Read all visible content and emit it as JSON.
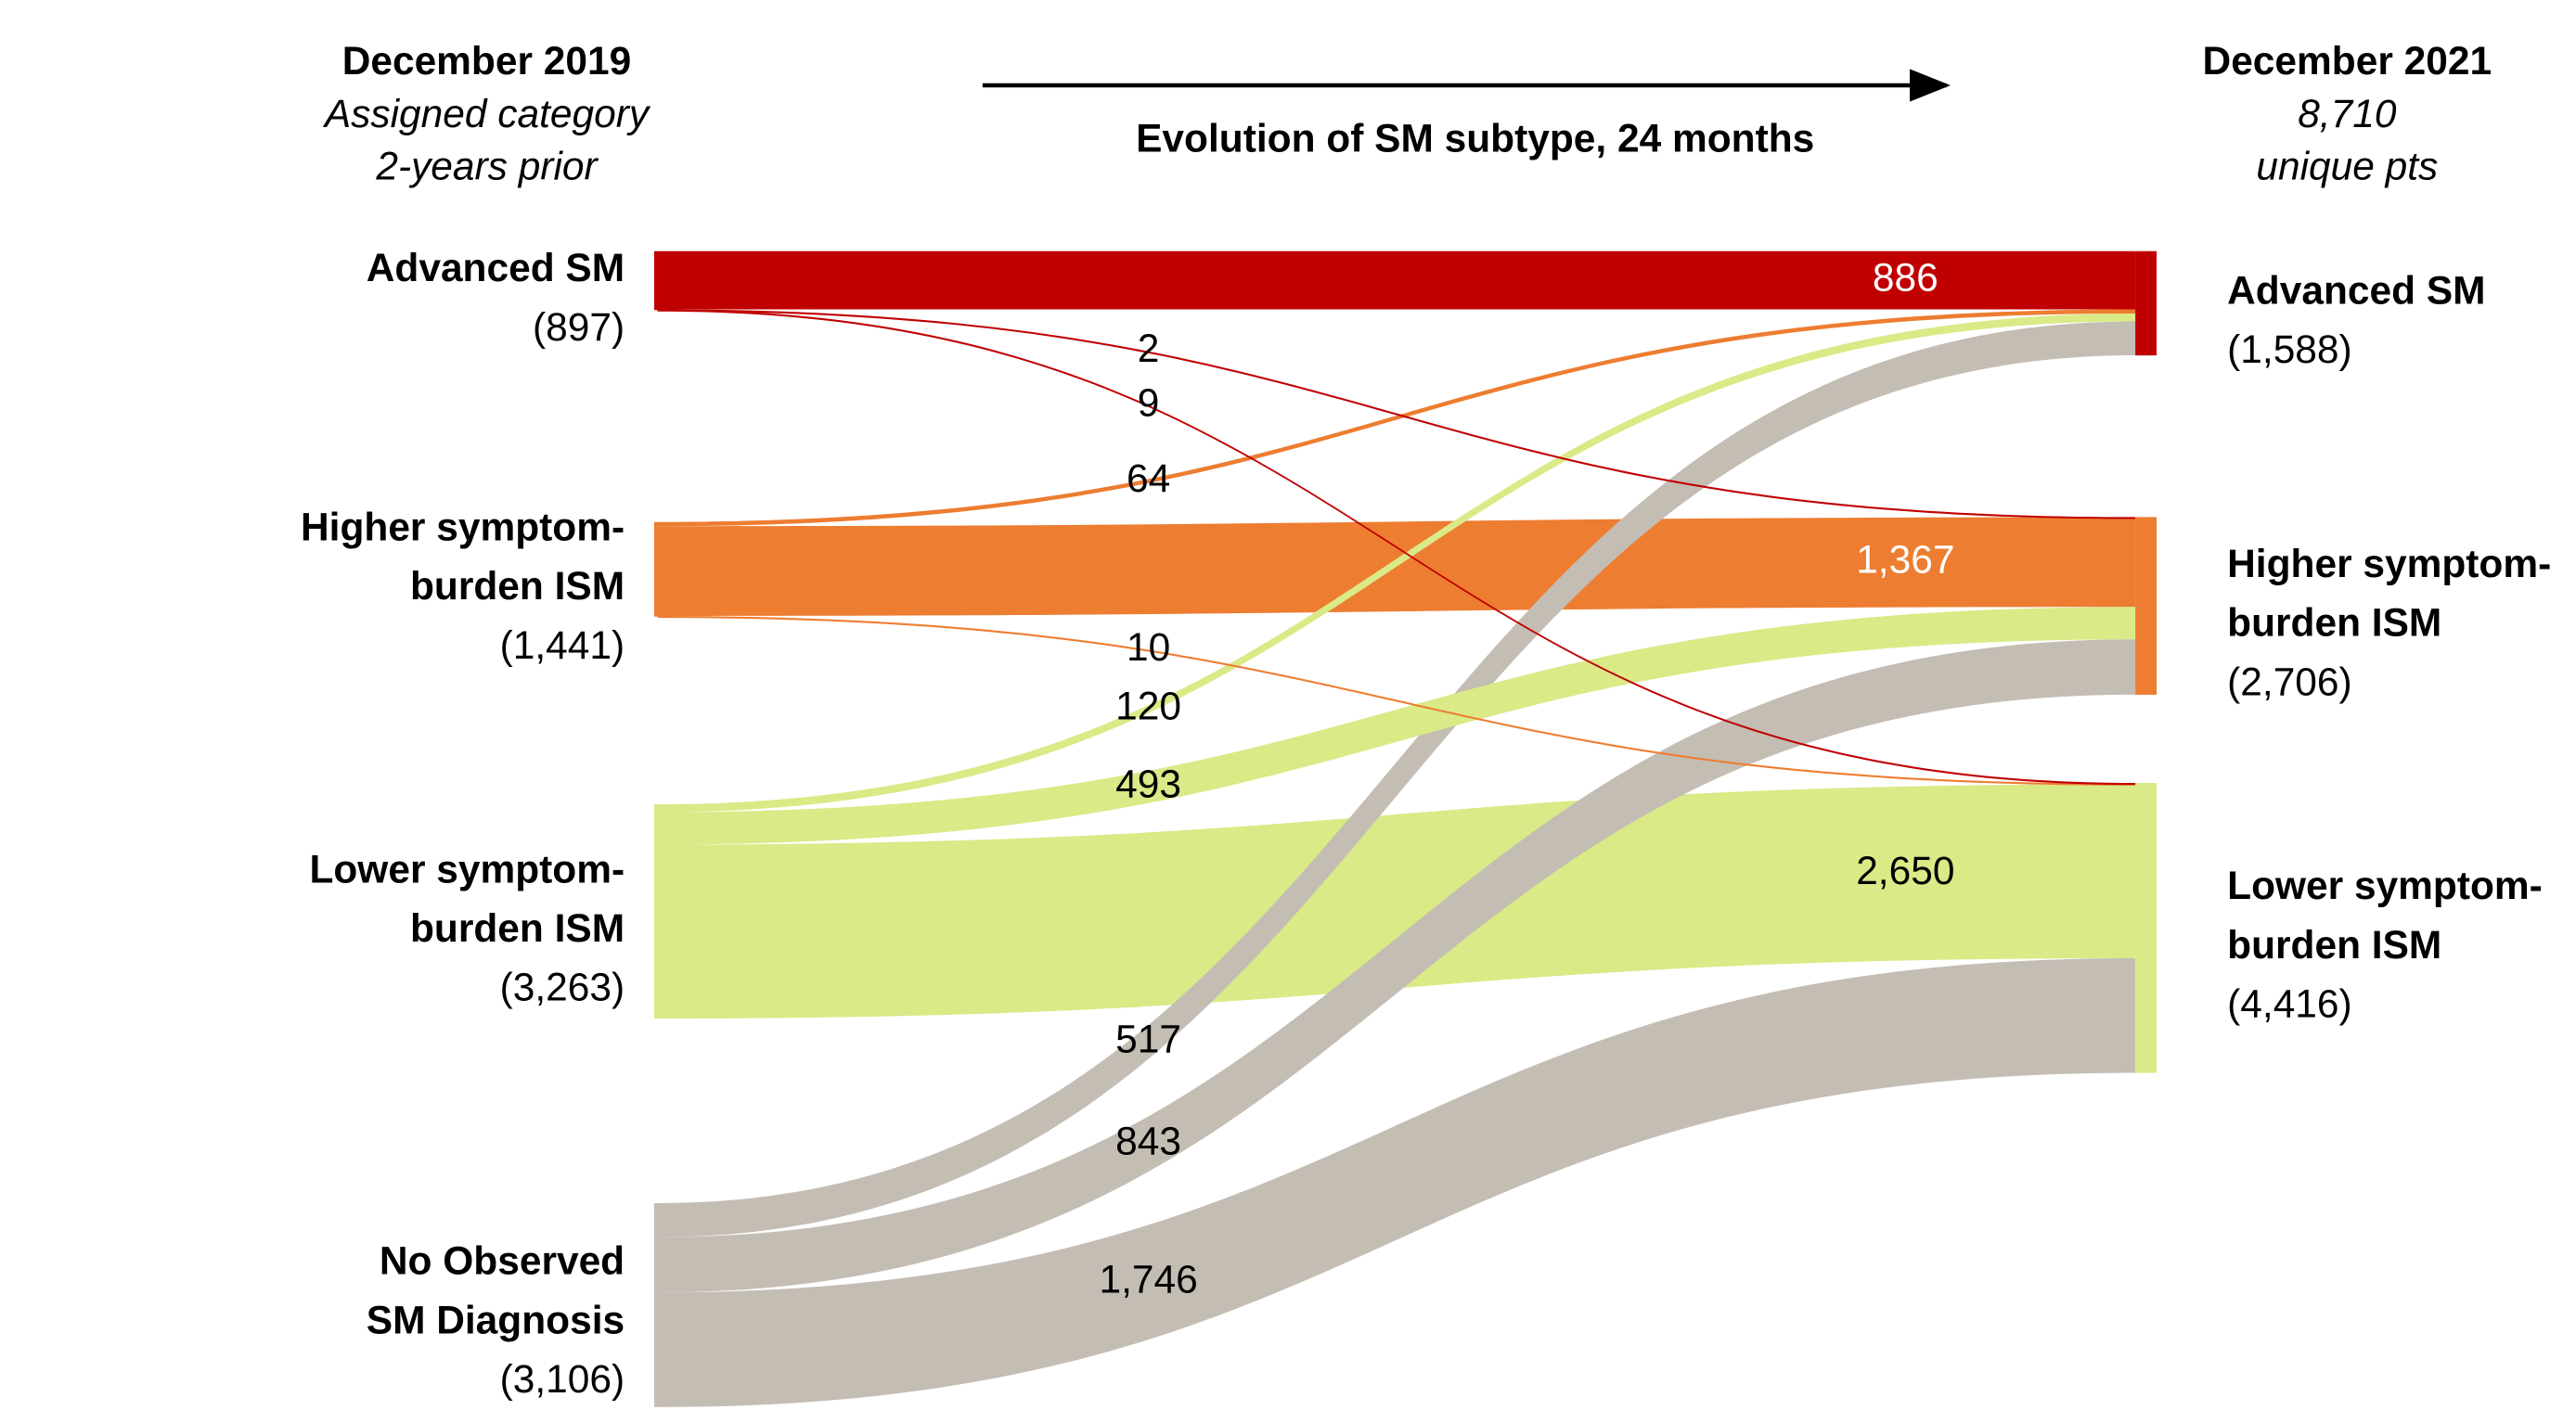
{
  "chart_data": {
    "type": "sankey",
    "left_header": {
      "title": "December 2019",
      "lines": [
        "Assigned category",
        "2-years prior"
      ]
    },
    "subtitle": "Evolution of SM subtype, 24 months",
    "right_header": {
      "title": "December 2021",
      "total": 8710,
      "total_label": "8,710",
      "note": "unique pts"
    },
    "left_nodes": [
      {
        "label": [
          "Advanced SM"
        ],
        "value": 897,
        "value_label": "(897)",
        "color": "#c00000"
      },
      {
        "label": [
          "Higher symptom-",
          "burden ISM"
        ],
        "value": 1441,
        "value_label": "(1,441)",
        "color": "#ed7d31"
      },
      {
        "label": [
          "Lower symptom-",
          "burden ISM"
        ],
        "value": 3263,
        "value_label": "(3,263)",
        "color": "#d9ea87"
      },
      {
        "label": [
          "No Observed",
          "SM Diagnosis"
        ],
        "value": 3106,
        "value_label": "(3,106)",
        "color": "#c4bdb4"
      }
    ],
    "right_nodes": [
      {
        "label": [
          "Advanced SM"
        ],
        "value": 1588,
        "value_label": "(1,588)",
        "color": "#c00000"
      },
      {
        "label": [
          "Higher symptom-",
          "burden ISM"
        ],
        "value": 2706,
        "value_label": "(2,706)",
        "color": "#ed7d31"
      },
      {
        "label": [
          "Lower symptom-",
          "burden ISM"
        ],
        "value": 4416,
        "value_label": "(4,416)",
        "color": "#d9ea87"
      }
    ],
    "links": [
      {
        "source": 0,
        "target": 0,
        "value": 886
      },
      {
        "source": 0,
        "target": 1,
        "value": 2
      },
      {
        "source": 0,
        "target": 2,
        "value": 9
      },
      {
        "source": 1,
        "target": 0,
        "value": 64
      },
      {
        "source": 1,
        "target": 1,
        "value": 1367,
        "value_label": "1,367"
      },
      {
        "source": 1,
        "target": 2,
        "value": 10
      },
      {
        "source": 2,
        "target": 0,
        "value": 120
      },
      {
        "source": 2,
        "target": 1,
        "value": 493
      },
      {
        "source": 2,
        "target": 2,
        "value": 2650,
        "value_label": "2,650"
      },
      {
        "source": 3,
        "target": 0,
        "value": 517
      },
      {
        "source": 3,
        "target": 1,
        "value": 843
      },
      {
        "source": 3,
        "target": 2,
        "value": 1746,
        "value_label": "1,746"
      }
    ]
  }
}
